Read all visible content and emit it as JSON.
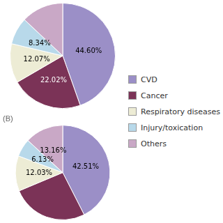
{
  "chart_data": [
    {
      "type": "pie",
      "categories": [
        "CVD",
        "Cancer",
        "Respiratory diseases",
        "Injury/toxication",
        "Others"
      ],
      "values": [
        44.6,
        22.02,
        12.07,
        8.34,
        12.97
      ],
      "value_labels": [
        "44.60%",
        "22.02%",
        "12.07%",
        "8.34%",
        null
      ],
      "colors": [
        "#9b8fc7",
        "#7b3357",
        "#edecd5",
        "#b8d9ea",
        "#c9a8c6"
      ],
      "data_labels": true,
      "legend": "right"
    },
    {
      "type": "pie",
      "title": "(B)",
      "categories": [
        "CVD",
        "Cancer",
        "Respiratory diseases",
        "Injury/toxication",
        "Others"
      ],
      "values": [
        42.51,
        26.17,
        12.03,
        6.13,
        13.16
      ],
      "value_labels": [
        "42.51%",
        null,
        "12.03%",
        "6.13%",
        "13.16%"
      ],
      "colors": [
        "#9b8fc7",
        "#7b3357",
        "#edecd5",
        "#b8d9ea",
        "#c9a8c6"
      ],
      "data_labels": true
    }
  ]
}
